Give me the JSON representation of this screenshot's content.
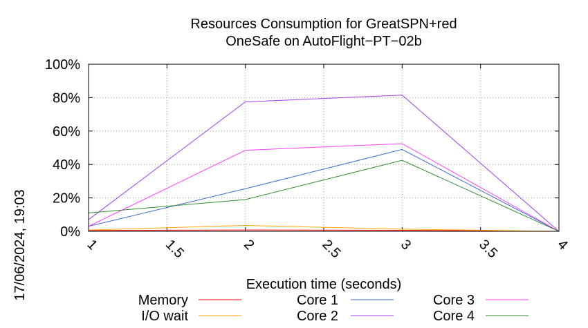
{
  "chart_data": {
    "type": "line",
    "title": "Resources Consumption for GreatSPN+red",
    "subtitle": "OneSafe on AutoFlight−PT−02b",
    "xlabel": "Execution time (seconds)",
    "ylabel": "",
    "xlim": [
      1,
      4
    ],
    "ylim": [
      0,
      100
    ],
    "x_ticks": [
      "1",
      "1.5",
      "2",
      "2.5",
      "3",
      "3.5",
      "4"
    ],
    "y_ticks": [
      "0%",
      "20%",
      "40%",
      "60%",
      "80%",
      "100%"
    ],
    "grid": true,
    "legend_position": "bottom",
    "x": [
      1,
      2,
      3,
      4
    ],
    "series": [
      {
        "name": "Memory",
        "color": "#ff0000",
        "values": [
          0.5,
          0.8,
          0.6,
          0
        ]
      },
      {
        "name": "I/O wait",
        "color": "#ffa500",
        "values": [
          0.8,
          3.5,
          1.3,
          0
        ]
      },
      {
        "name": "Core 1",
        "color": "#3c6bd0",
        "values": [
          3,
          25.5,
          49,
          0
        ]
      },
      {
        "name": "Core 2",
        "color": "#a040f0",
        "values": [
          7,
          77.5,
          81.5,
          0
        ]
      },
      {
        "name": "Core 3",
        "color": "#ff40ff",
        "values": [
          3,
          48.5,
          52.5,
          0
        ]
      },
      {
        "name": "Core 4",
        "color": "#2e8b2e",
        "values": [
          11,
          19,
          42.5,
          0
        ]
      }
    ]
  },
  "timestamp": "17/06/2024, 19:03"
}
